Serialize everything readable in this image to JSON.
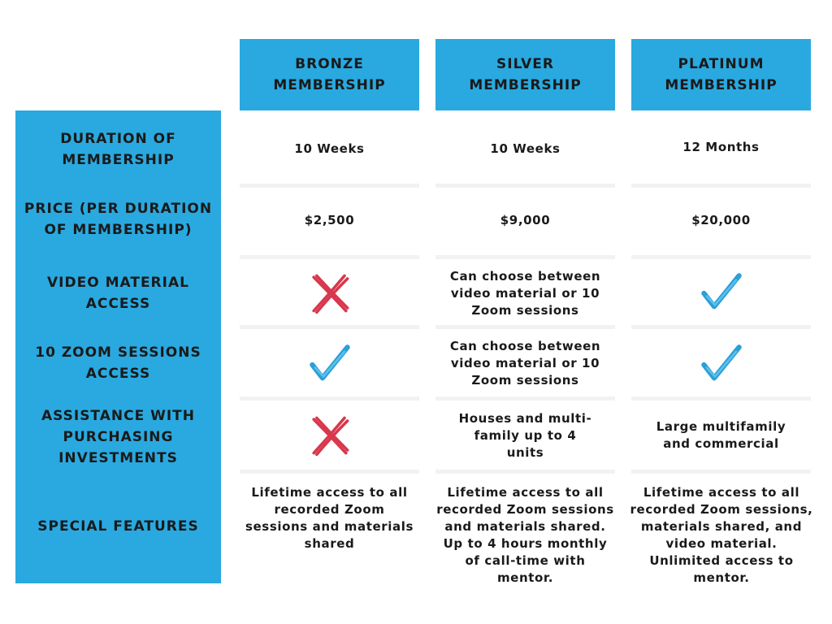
{
  "colors": {
    "accent": "#29a9e0",
    "check": "#2a9fd8",
    "cross": "#d8374d"
  },
  "columns": [
    {
      "line1": "BRONZE",
      "line2": "MEMBERSHIP"
    },
    {
      "line1": "SILVER",
      "line2": "MEMBERSHIP"
    },
    {
      "line1": "PLATINUM",
      "line2": "MEMBERSHIP"
    }
  ],
  "rows": {
    "duration": {
      "label": [
        "DURATION OF",
        "MEMBERSHIP"
      ],
      "values": [
        "10 Weeks",
        "10 Weeks",
        "12 Months"
      ]
    },
    "price": {
      "label": [
        "PRICE (PER DURATION",
        "OF MEMBERSHIP)"
      ],
      "values": [
        "$2,500",
        "$9,000",
        "$20,000"
      ]
    },
    "video": {
      "label": [
        "VIDEO MATERIAL",
        "ACCESS"
      ],
      "bronze_icon": "cross-icon",
      "silver": [
        "Can choose between",
        "video material or 10",
        "Zoom sessions"
      ],
      "platinum_icon": "check-icon"
    },
    "zoom": {
      "label": [
        "10 ZOOM SESSIONS",
        "ACCESS"
      ],
      "bronze_icon": "check-icon",
      "silver": [
        "Can choose between",
        "video material or 10",
        "Zoom sessions"
      ],
      "platinum_icon": "check-icon"
    },
    "assistance": {
      "label": [
        "ASSISTANCE WITH",
        "PURCHASING",
        "INVESTMENTS"
      ],
      "bronze_icon": "cross-icon",
      "silver": [
        "Houses and multi-",
        "family up to 4",
        "units"
      ],
      "platinum": [
        "Large multifamily",
        "and commercial"
      ]
    },
    "special": {
      "label": [
        "SPECIAL FEATURES"
      ],
      "bronze": [
        "Lifetime access to all",
        "recorded Zoom",
        "sessions and materials",
        "shared"
      ],
      "silver": [
        "Lifetime access to all",
        "recorded Zoom sessions",
        "and materials shared.",
        "Up to 4 hours monthly",
        "of call-time with",
        "mentor."
      ],
      "platinum": [
        "Lifetime access to all",
        "recorded Zoom sessions,",
        "materials shared, and",
        "video material.",
        "Unlimited access to",
        "mentor."
      ]
    }
  }
}
